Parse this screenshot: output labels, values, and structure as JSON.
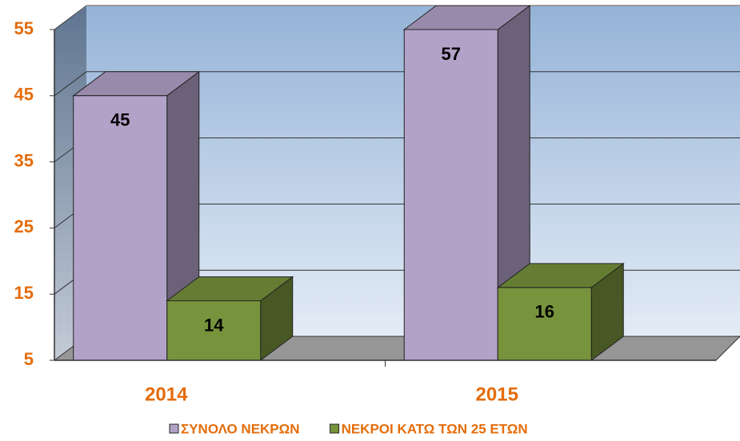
{
  "chart_data": {
    "type": "bar3d",
    "categories": [
      "2014",
      "2015"
    ],
    "series": [
      {
        "name": "ΣΥΝΟΛΟ ΝΕΚΡΩΝ",
        "color": "#b3a2c8",
        "values": [
          45,
          57
        ]
      },
      {
        "name": "ΝΕΚΡΟΙ ΚΑΤΩ ΤΩΝ 25 ΕΤΩΝ",
        "color": "#77933c",
        "values": [
          14,
          16
        ]
      }
    ],
    "ylim": [
      5,
      55
    ],
    "yticks": [
      5,
      15,
      25,
      35,
      45,
      55
    ],
    "grid": true,
    "legend": "bottom"
  }
}
